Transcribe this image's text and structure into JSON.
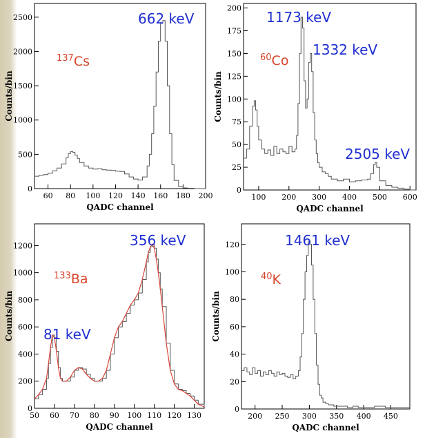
{
  "colors": {
    "peak_label": "#1f2fd0",
    "isotope_label": "#d8452a",
    "histogram": "#555555",
    "fit_line": "#d9453a"
  },
  "chart_data": [
    {
      "type": "histogram",
      "isotope": {
        "mass": "137",
        "symbol": "Cs"
      },
      "annotations": [
        "662 keV"
      ],
      "xlabel": "QADC channel",
      "ylabel": "Counts/bin",
      "xlim": [
        48,
        200
      ],
      "ylim": [
        0,
        2700
      ],
      "xticks": [
        60,
        80,
        100,
        120,
        140,
        160,
        180,
        200
      ],
      "yticks": [
        0,
        500,
        1000,
        1500,
        2000,
        2500
      ],
      "series": [
        {
          "x": [
            48,
            52,
            56,
            60,
            64,
            68,
            72,
            76,
            78,
            80,
            82,
            84,
            86,
            88,
            92,
            96,
            100,
            104,
            108,
            112,
            116,
            120,
            124,
            128,
            132,
            136,
            140,
            144,
            148,
            150,
            152,
            154,
            156,
            158,
            160,
            162,
            164,
            166,
            168,
            170,
            172,
            176,
            180,
            184,
            190,
            200
          ],
          "y": [
            180,
            195,
            205,
            225,
            260,
            300,
            360,
            450,
            510,
            540,
            530,
            490,
            440,
            380,
            330,
            300,
            285,
            290,
            275,
            270,
            265,
            255,
            250,
            215,
            170,
            140,
            125,
            170,
            330,
            500,
            800,
            1200,
            1700,
            2150,
            2410,
            2450,
            2150,
            1500,
            800,
            350,
            120,
            30,
            10,
            5,
            0,
            0
          ]
        }
      ]
    },
    {
      "type": "histogram",
      "isotope": {
        "mass": "60",
        "symbol": "Co"
      },
      "annotations": [
        "1173 keV",
        "1332 keV",
        "2505 keV"
      ],
      "xlabel": "QADC channel",
      "ylabel": "Counts/bin",
      "xlim": [
        50,
        620
      ],
      "ylim": [
        0,
        205
      ],
      "xticks": [
        100,
        200,
        300,
        400,
        500,
        600
      ],
      "yticks": [
        0,
        25,
        50,
        75,
        100,
        125,
        150,
        175,
        200
      ],
      "series": [
        {
          "x": [
            50,
            60,
            70,
            80,
            85,
            90,
            95,
            100,
            110,
            120,
            130,
            140,
            150,
            160,
            170,
            180,
            190,
            200,
            210,
            220,
            225,
            230,
            235,
            240,
            245,
            250,
            255,
            260,
            265,
            270,
            275,
            280,
            285,
            290,
            295,
            300,
            310,
            320,
            330,
            340,
            360,
            380,
            400,
            420,
            440,
            460,
            470,
            480,
            485,
            490,
            500,
            520,
            540,
            560,
            580,
            600,
            620
          ],
          "y": [
            35,
            45,
            70,
            92,
            98,
            88,
            70,
            55,
            45,
            40,
            44,
            38,
            48,
            40,
            45,
            42,
            40,
            48,
            42,
            45,
            60,
            95,
            150,
            190,
            178,
            120,
            90,
            100,
            140,
            150,
            130,
            85,
            55,
            40,
            30,
            25,
            20,
            18,
            15,
            12,
            10,
            12,
            9,
            10,
            11,
            12,
            18,
            28,
            30,
            25,
            10,
            5,
            3,
            2,
            1,
            0,
            0
          ]
        }
      ]
    },
    {
      "type": "histogram",
      "isotope": {
        "mass": "133",
        "symbol": "Ba"
      },
      "annotations": [
        "356 keV",
        "81 keV"
      ],
      "xlabel": "QADC channel",
      "ylabel": "Counts/bin",
      "xlim": [
        50,
        135
      ],
      "ylim": [
        0,
        1360
      ],
      "xticks": [
        50,
        60,
        70,
        80,
        90,
        100,
        110,
        120,
        130
      ],
      "yticks": [
        0,
        200,
        400,
        600,
        800,
        1000,
        1200
      ],
      "series": [
        {
          "x": [
            50,
            52,
            54,
            56,
            57,
            58,
            59,
            60,
            61,
            62,
            63,
            64,
            66,
            68,
            70,
            72,
            74,
            76,
            78,
            80,
            82,
            84,
            86,
            88,
            90,
            92,
            94,
            96,
            98,
            100,
            102,
            104,
            106,
            107,
            108,
            109,
            110,
            111,
            112,
            113,
            114,
            116,
            118,
            120,
            122,
            124,
            126,
            128,
            130,
            132,
            135
          ],
          "y": [
            70,
            100,
            140,
            220,
            330,
            450,
            540,
            520,
            420,
            300,
            220,
            200,
            200,
            230,
            280,
            300,
            290,
            250,
            220,
            200,
            200,
            220,
            280,
            400,
            520,
            600,
            640,
            700,
            760,
            800,
            850,
            950,
            1080,
            1150,
            1190,
            1210,
            1180,
            1100,
            1000,
            880,
            750,
            480,
            280,
            180,
            140,
            130,
            110,
            90,
            60,
            30,
            10
          ]
        }
      ],
      "fit": true
    },
    {
      "type": "histogram",
      "isotope": {
        "mass": "40",
        "symbol": "K"
      },
      "annotations": [
        "1461 keV"
      ],
      "xlabel": "QADC channel",
      "ylabel": "Counts/bin",
      "xlim": [
        175,
        485
      ],
      "ylim": [
        0,
        135
      ],
      "xticks": [
        200,
        250,
        300,
        350,
        400,
        450
      ],
      "yticks": [
        0,
        20,
        40,
        60,
        80,
        100,
        120
      ],
      "series": [
        {
          "x": [
            175,
            180,
            185,
            190,
            195,
            200,
            205,
            210,
            215,
            220,
            225,
            230,
            235,
            240,
            245,
            250,
            255,
            260,
            265,
            270,
            275,
            280,
            283,
            286,
            289,
            292,
            295,
            298,
            301,
            304,
            307,
            310,
            313,
            316,
            319,
            322,
            325,
            330,
            335,
            340,
            345,
            350,
            360,
            370,
            380,
            390,
            400,
            420,
            440,
            460,
            485
          ],
          "y": [
            28,
            30,
            27,
            25,
            30,
            26,
            28,
            24,
            27,
            25,
            28,
            26,
            24,
            27,
            25,
            26,
            24,
            23,
            25,
            22,
            24,
            28,
            38,
            55,
            80,
            100,
            112,
            122,
            120,
            105,
            80,
            55,
            32,
            18,
            10,
            8,
            5,
            4,
            3,
            3,
            2,
            2,
            2,
            1,
            2,
            1,
            1,
            2,
            1,
            1,
            1
          ]
        }
      ]
    }
  ]
}
